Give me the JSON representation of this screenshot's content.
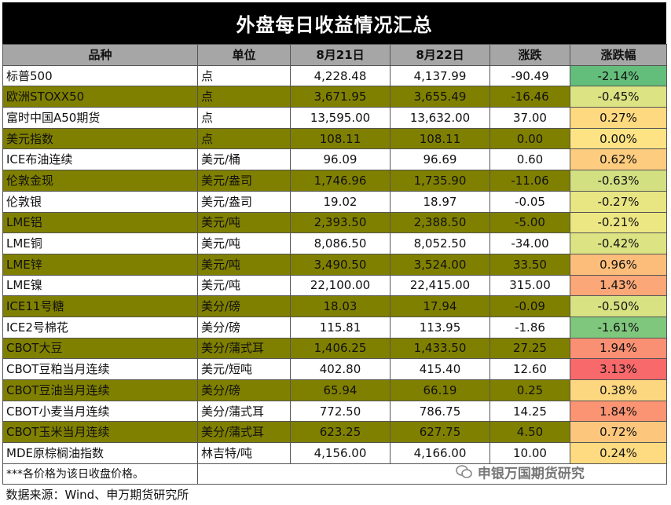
{
  "title": "外盘每日收益情况汇总",
  "headers": [
    "品种",
    "单位",
    "8月21日",
    "8月22日",
    "涨跌",
    "涨跌幅"
  ],
  "rows": [
    {
      "name": "标普500",
      "unit": "点",
      "d1": "4,228.48",
      "d2": "4,137.99",
      "chg": "-90.49",
      "pct": "-2.14%",
      "color": "#63be7b"
    },
    {
      "name": "欧洲STOXX50",
      "unit": "点",
      "d1": "3,671.95",
      "d2": "3,655.49",
      "chg": "-16.46",
      "pct": "-0.45%",
      "color": "#dbe383"
    },
    {
      "name": "富时中国A50期货",
      "unit": "点",
      "d1": "13,595.00",
      "d2": "13,632.00",
      "chg": "37.00",
      "pct": "0.27%",
      "color": "#fed980"
    },
    {
      "name": "美元指数",
      "unit": "点",
      "d1": "108.11",
      "d2": "108.11",
      "chg": "0.00",
      "pct": "0.00%",
      "color": "#fde383"
    },
    {
      "name": "ICE布油连续",
      "unit": "美元/桶",
      "d1": "96.09",
      "d2": "96.69",
      "chg": "0.60",
      "pct": "0.62%",
      "color": "#fdcc7e"
    },
    {
      "name": "伦敦金现",
      "unit": "美元/盎司",
      "d1": "1,746.96",
      "d2": "1,735.90",
      "chg": "-11.06",
      "pct": "-0.63%",
      "color": "#d2e082"
    },
    {
      "name": "伦敦银",
      "unit": "美元/盎司",
      "d1": "19.02",
      "d2": "18.97",
      "chg": "-0.05",
      "pct": "-0.27%",
      "color": "#e8e583"
    },
    {
      "name": "LME铝",
      "unit": "美元/吨",
      "d1": "2,393.50",
      "d2": "2,388.50",
      "chg": "-5.00",
      "pct": "-0.21%",
      "color": "#ece683"
    },
    {
      "name": "LME铜",
      "unit": "美元/吨",
      "d1": "8,086.50",
      "d2": "8,052.50",
      "chg": "-34.00",
      "pct": "-0.42%",
      "color": "#dce383"
    },
    {
      "name": "LME锌",
      "unit": "美元/吨",
      "d1": "3,490.50",
      "d2": "3,524.00",
      "chg": "33.50",
      "pct": "0.96%",
      "color": "#fcbd7b"
    },
    {
      "name": "LME镍",
      "unit": "美元/吨",
      "d1": "22,100.00",
      "d2": "22,415.00",
      "chg": "315.00",
      "pct": "1.43%",
      "color": "#fba777"
    },
    {
      "name": "ICE11号糖",
      "unit": "美分/磅",
      "d1": "18.03",
      "d2": "17.94",
      "chg": "-0.09",
      "pct": "-0.50%",
      "color": "#d8e282"
    },
    {
      "name": "ICE2号棉花",
      "unit": "美分/磅",
      "d1": "115.81",
      "d2": "113.95",
      "chg": "-1.86",
      "pct": "-1.61%",
      "color": "#7fc77d"
    },
    {
      "name": "CBOT大豆",
      "unit": "美分/蒲式耳",
      "d1": "1,406.25",
      "d2": "1,433.50",
      "chg": "27.25",
      "pct": "1.94%",
      "color": "#fa9073"
    },
    {
      "name": "CBOT豆粕当月连续",
      "unit": "美元/短吨",
      "d1": "402.80",
      "d2": "415.40",
      "chg": "12.60",
      "pct": "3.13%",
      "color": "#f8696b"
    },
    {
      "name": "CBOT豆油当月连续",
      "unit": "美分/磅",
      "d1": "65.94",
      "d2": "66.19",
      "chg": "0.25",
      "pct": "0.38%",
      "color": "#fdd680"
    },
    {
      "name": "CBOT小麦当月连续",
      "unit": "美分/蒲式耳",
      "d1": "772.50",
      "d2": "786.75",
      "chg": "14.25",
      "pct": "1.84%",
      "color": "#fa9473"
    },
    {
      "name": "CBOT玉米当月连续",
      "unit": "美分/蒲式耳",
      "d1": "623.25",
      "d2": "627.75",
      "chg": "4.50",
      "pct": "0.72%",
      "color": "#fcc77d"
    },
    {
      "name": "MDE原棕榈油指数",
      "unit": "林吉特/吨",
      "d1": "4,156.00",
      "d2": "4,166.00",
      "chg": "10.00",
      "pct": "0.24%",
      "color": "#fedb81"
    }
  ],
  "note": "***各价格为该日收盘价格。",
  "watermark": "申银万国期货研究",
  "source": "数据来源：Wind、申万期货研究所"
}
